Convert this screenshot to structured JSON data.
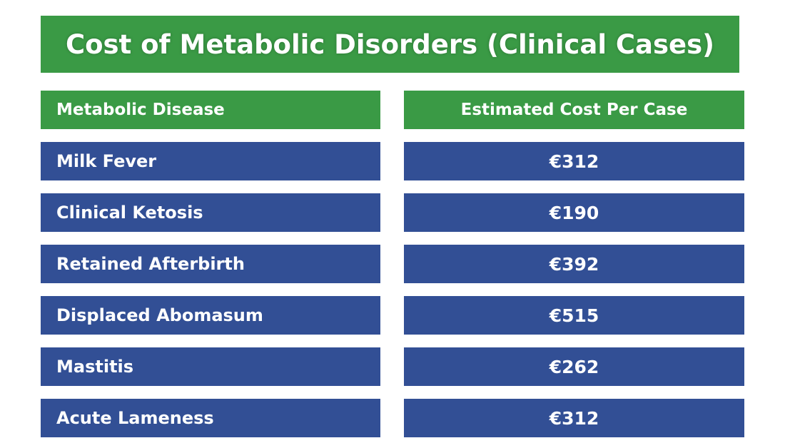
{
  "title": "Cost of Metabolic Disorders (Clinical Cases)",
  "colors": {
    "header_green": "#3a9a45",
    "row_blue": "#324f95",
    "text": "#ffffff"
  },
  "chart_data": {
    "type": "table",
    "title": "Cost of Metabolic Disorders (Clinical Cases)",
    "columns": [
      "Metabolic Disease",
      "Estimated Cost Per Case"
    ],
    "rows": [
      [
        "Milk Fever",
        "€312"
      ],
      [
        "Clinical Ketosis",
        "€190"
      ],
      [
        "Retained Afterbirth",
        "€392"
      ],
      [
        "Displaced Abomasum",
        "€515"
      ],
      [
        "Mastitis",
        "€262"
      ],
      [
        "Acute Lameness",
        "€312"
      ]
    ],
    "values": [
      312,
      190,
      392,
      515,
      262,
      312
    ],
    "unit": "€"
  }
}
